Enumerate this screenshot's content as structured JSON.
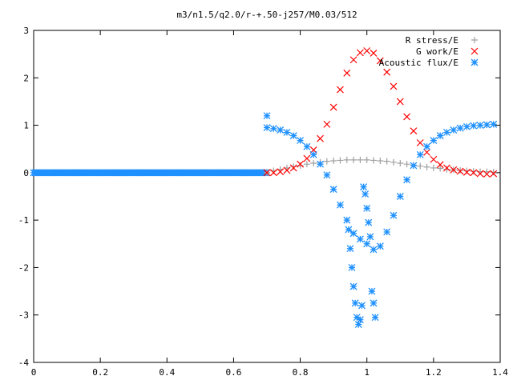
{
  "chart_data": {
    "type": "scatter",
    "title": "m3/n1.5/q2.0/r-+.50-j257/M0.03/512",
    "xlabel": "",
    "ylabel": "",
    "xlim": [
      0,
      1.4
    ],
    "ylim": [
      -4,
      3
    ],
    "x_ticks": [
      "0",
      "0.2",
      "0.4",
      "0.6",
      "0.8",
      "1",
      "1.2",
      "1.4"
    ],
    "y_ticks": [
      "3",
      "2",
      "1",
      "0",
      "-1",
      "-2",
      "-3",
      "-4"
    ],
    "grid": false,
    "legend_position": "top-right",
    "series": [
      {
        "name": "R stress/E",
        "marker": "plus",
        "color": "#a0a0a0",
        "x": [
          0.7,
          0.72,
          0.74,
          0.76,
          0.78,
          0.8,
          0.82,
          0.84,
          0.86,
          0.88,
          0.9,
          0.92,
          0.94,
          0.96,
          0.98,
          1.0,
          1.02,
          1.04,
          1.06,
          1.08,
          1.1,
          1.12,
          1.14,
          1.16,
          1.18,
          1.2,
          1.22,
          1.24,
          1.26,
          1.28,
          1.3,
          1.32,
          1.34,
          1.36,
          1.38
        ],
        "y": [
          0.0,
          0.04,
          0.07,
          0.1,
          0.13,
          0.15,
          0.18,
          0.2,
          0.22,
          0.24,
          0.25,
          0.26,
          0.27,
          0.27,
          0.27,
          0.27,
          0.26,
          0.25,
          0.24,
          0.22,
          0.2,
          0.18,
          0.16,
          0.14,
          0.12,
          0.1,
          0.09,
          0.07,
          0.06,
          0.05,
          0.04,
          0.03,
          0.02,
          0.02,
          0.01
        ]
      },
      {
        "name": "G work/E",
        "marker": "cross",
        "color": "#ff0000",
        "x": [
          0.7,
          0.72,
          0.74,
          0.76,
          0.78,
          0.8,
          0.82,
          0.84,
          0.86,
          0.88,
          0.9,
          0.92,
          0.94,
          0.96,
          0.98,
          1.0,
          1.02,
          1.04,
          1.06,
          1.08,
          1.1,
          1.12,
          1.14,
          1.16,
          1.18,
          1.2,
          1.22,
          1.24,
          1.26,
          1.28,
          1.3,
          1.32,
          1.34,
          1.36,
          1.38
        ],
        "y": [
          0.0,
          0.0,
          0.02,
          0.05,
          0.1,
          0.18,
          0.3,
          0.48,
          0.72,
          1.02,
          1.38,
          1.75,
          2.1,
          2.38,
          2.53,
          2.57,
          2.52,
          2.36,
          2.12,
          1.82,
          1.5,
          1.18,
          0.88,
          0.63,
          0.43,
          0.28,
          0.17,
          0.1,
          0.06,
          0.03,
          0.01,
          0.0,
          -0.02,
          -0.03,
          -0.02
        ]
      },
      {
        "name": "Acoustic flux/E",
        "marker": "star",
        "color": "#1e90ff",
        "x": [
          0.7,
          0.72,
          0.74,
          0.76,
          0.78,
          0.8,
          0.82,
          0.84,
          0.86,
          0.88,
          0.9,
          0.92,
          0.94,
          0.96,
          0.98,
          1.0,
          1.02,
          1.04,
          1.06,
          1.08,
          1.1,
          1.12,
          1.14,
          1.16,
          1.18,
          1.2,
          1.22,
          1.24,
          1.26,
          1.28,
          1.3,
          1.32,
          1.34,
          1.36,
          1.38,
          0.7,
          0.945,
          0.95,
          0.955,
          0.96,
          0.965,
          0.97,
          0.975,
          0.98,
          0.985,
          0.99,
          0.995,
          1.0,
          1.005,
          1.01,
          1.015,
          1.02,
          1.025
        ],
        "y": [
          0.95,
          0.93,
          0.9,
          0.85,
          0.78,
          0.68,
          0.55,
          0.38,
          0.18,
          -0.05,
          -0.35,
          -0.68,
          -1.0,
          -1.28,
          -1.4,
          -1.5,
          -1.62,
          -1.55,
          -1.25,
          -0.9,
          -0.5,
          -0.15,
          0.15,
          0.38,
          0.55,
          0.68,
          0.78,
          0.85,
          0.9,
          0.94,
          0.97,
          0.99,
          1.0,
          1.01,
          1.02,
          1.2,
          -1.2,
          -1.6,
          -2.0,
          -2.4,
          -2.75,
          -3.05,
          -3.2,
          -3.1,
          -2.8,
          -0.3,
          -0.45,
          -0.75,
          -1.05,
          -1.35,
          -2.5,
          -2.75,
          -3.05
        ]
      }
    ]
  }
}
